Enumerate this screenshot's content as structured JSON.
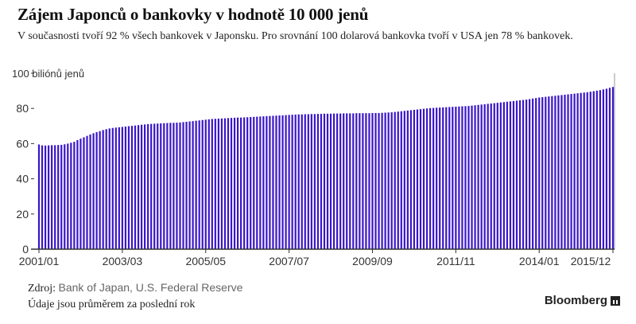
{
  "title": "Zájem Japonců o bankovky v hodnotě 10 000 jenů",
  "subtitle": "V současnosti tvoří 92 % všech bankovek v Japonsku. Pro srovnání 100 dolarová bankovka tvoří v USA jen 78 % bankovek.",
  "footer": {
    "source_label": "Zdroj:",
    "source_text": "Bank of Japan, U.S. Federal Reserve",
    "note": "Údaje jsou průměrem za poslední rok",
    "brand": "Bloomberg"
  },
  "colors": {
    "bars": "#3b16c8",
    "axis": "#333333",
    "grid": "#e6e6e6"
  },
  "chart_data": {
    "type": "bar",
    "ylabel": "100 biliónů jenů",
    "ylim": [
      0,
      100
    ],
    "yticks": [
      0,
      20,
      40,
      60,
      80,
      100
    ],
    "ytick_labels": [
      "0",
      "20",
      "40",
      "60",
      "80",
      ""
    ],
    "xtick_labels": [
      "2001/01",
      "2003/03",
      "2005/05",
      "2007/07",
      "2009/09",
      "2011/11",
      "2014/01",
      "2015/12"
    ],
    "xtick_indices": [
      0,
      26,
      52,
      78,
      104,
      130,
      156,
      179
    ],
    "x_start": "2001/01",
    "x_end": "2015/12",
    "frequency": "monthly",
    "grid": false,
    "values": [
      59.5,
      59.0,
      58.9,
      59.0,
      59.1,
      59.1,
      59.2,
      59.3,
      59.6,
      60.0,
      60.5,
      61.0,
      62.0,
      62.8,
      63.6,
      64.4,
      65.2,
      65.9,
      66.5,
      67.1,
      67.7,
      68.2,
      68.6,
      68.9,
      69.1,
      69.3,
      69.5,
      69.7,
      69.9,
      70.1,
      70.3,
      70.5,
      70.7,
      70.9,
      71.1,
      71.2,
      71.3,
      71.4,
      71.5,
      71.6,
      71.7,
      71.8,
      71.8,
      71.9,
      72.0,
      72.2,
      72.4,
      72.6,
      72.8,
      73.0,
      73.2,
      73.4,
      73.6,
      73.8,
      74.0,
      74.1,
      74.2,
      74.3,
      74.4,
      74.5,
      74.6,
      74.7,
      74.8,
      74.8,
      74.9,
      75.0,
      75.1,
      75.2,
      75.3,
      75.4,
      75.5,
      75.6,
      75.7,
      75.8,
      75.9,
      76.0,
      76.1,
      76.2,
      76.3,
      76.4,
      76.5,
      76.6,
      76.6,
      76.7,
      76.7,
      76.8,
      76.8,
      76.9,
      76.9,
      77.0,
      77.0,
      77.0,
      77.1,
      77.1,
      77.1,
      77.2,
      77.2,
      77.2,
      77.2,
      77.3,
      77.3,
      77.3,
      77.3,
      77.3,
      77.4,
      77.4,
      77.4,
      77.5,
      77.6,
      77.7,
      77.8,
      78.0,
      78.2,
      78.4,
      78.6,
      78.8,
      79.0,
      79.2,
      79.4,
      79.6,
      79.8,
      80.0,
      80.2,
      80.3,
      80.4,
      80.5,
      80.6,
      80.7,
      80.8,
      80.9,
      81.0,
      81.1,
      81.2,
      81.3,
      81.4,
      81.6,
      81.8,
      82.0,
      82.2,
      82.4,
      82.6,
      82.8,
      83.0,
      83.2,
      83.4,
      83.6,
      83.8,
      84.0,
      84.2,
      84.4,
      84.6,
      84.8,
      85.0,
      85.3,
      85.6,
      85.9,
      86.2,
      86.4,
      86.6,
      86.8,
      87.0,
      87.2,
      87.4,
      87.6,
      87.8,
      88.0,
      88.2,
      88.4,
      88.6,
      88.8,
      89.0,
      89.2,
      89.5,
      89.8,
      90.1,
      90.4,
      90.8,
      91.2,
      91.7,
      92.2
    ]
  }
}
